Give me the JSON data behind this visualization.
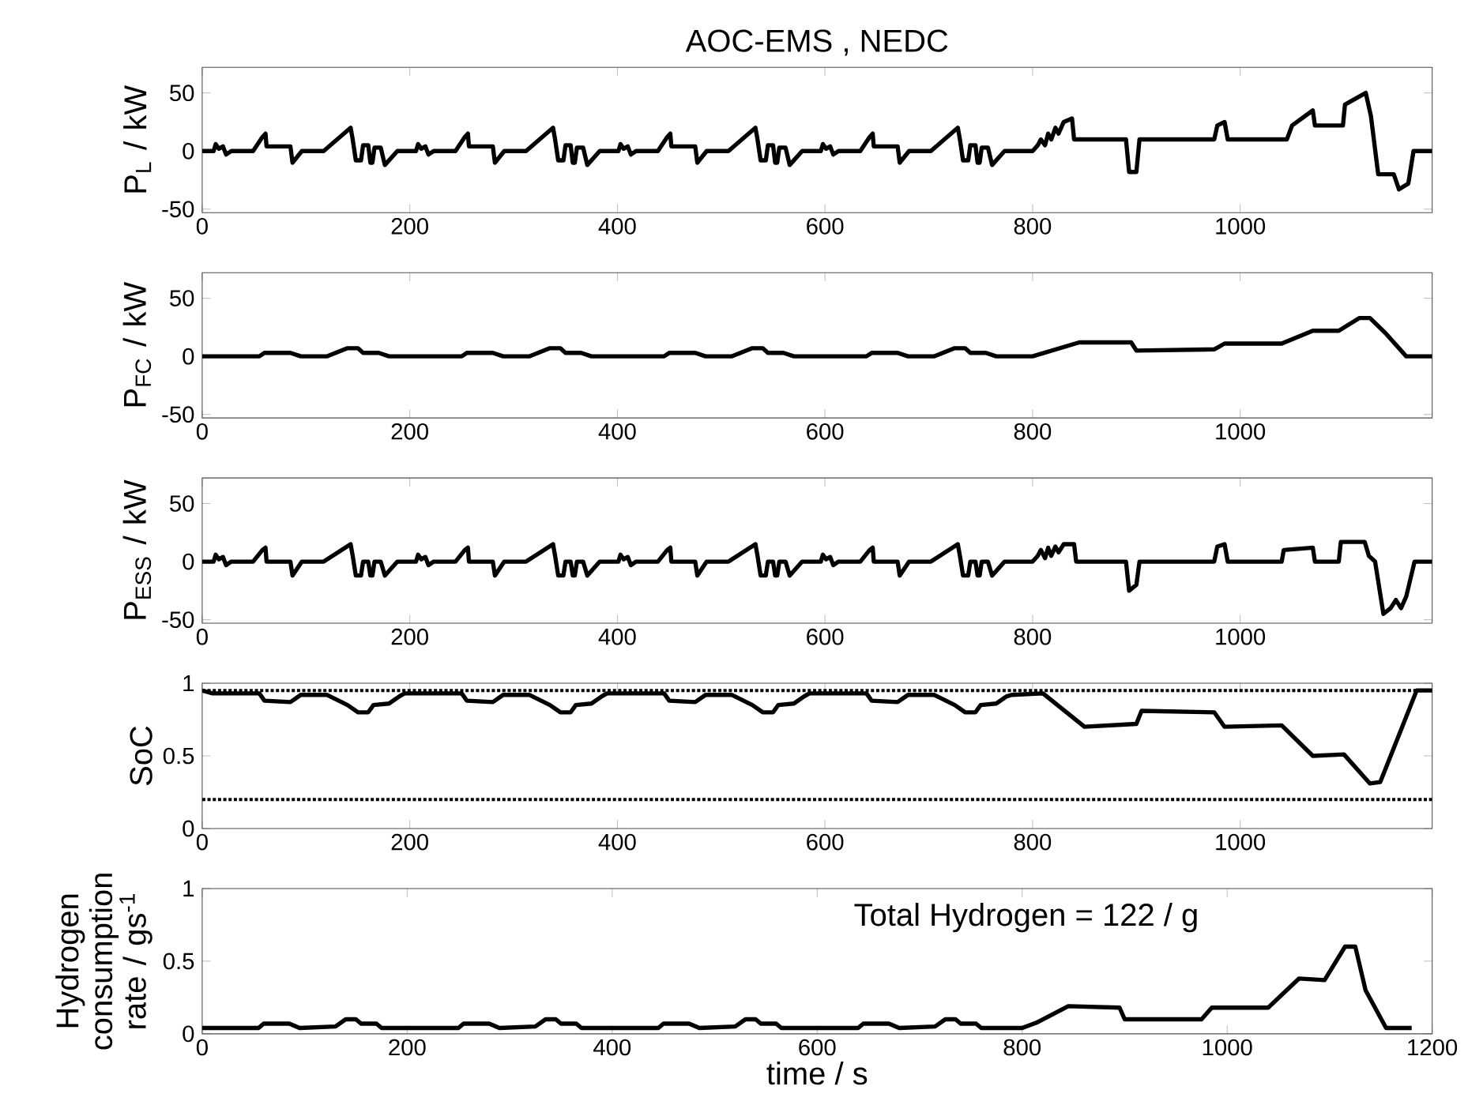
{
  "chart_data": [
    {
      "type": "line",
      "title": "AOC-EMS , NEDC",
      "ylabel": "P$_{L}$ / kW",
      "xlim": [
        0,
        1185
      ],
      "xticks": [
        0,
        200,
        400,
        600,
        800,
        1000
      ],
      "ylim": [
        -53,
        72
      ],
      "yticks": [
        -50,
        0,
        50
      ],
      "line_style": "solid",
      "series": [
        {
          "color": "#000000",
          "x": [
            0,
            11,
            13,
            16,
            20,
            23,
            28,
            49,
            58,
            61,
            62,
            85,
            87,
            96,
            117,
            143,
            145,
            148,
            153,
            155,
            160,
            162,
            164,
            166,
            172,
            176,
            188,
            195,
            206,
            208,
            211,
            215,
            218,
            223,
            244,
            253,
            256,
            257,
            280,
            282,
            291,
            312,
            338,
            340,
            343,
            348,
            350,
            355,
            357,
            359,
            361,
            367,
            371,
            383,
            390,
            401,
            403,
            406,
            410,
            413,
            418,
            439,
            448,
            451,
            452,
            475,
            477,
            486,
            507,
            533,
            535,
            538,
            543,
            545,
            550,
            552,
            554,
            556,
            562,
            566,
            578,
            585,
            596,
            598,
            601,
            605,
            608,
            613,
            634,
            643,
            646,
            647,
            670,
            672,
            681,
            702,
            728,
            730,
            733,
            738,
            740,
            745,
            747,
            749,
            751,
            757,
            761,
            773,
            780,
            800,
            805,
            808,
            812,
            815,
            818,
            822,
            825,
            830,
            838,
            840,
            890,
            893,
            900,
            903,
            975,
            978,
            985,
            988,
            1045,
            1050,
            1070,
            1072,
            1099,
            1101,
            1121,
            1126,
            1133,
            1148,
            1153,
            1162,
            1167,
            1185
          ],
          "values": [
            0,
            0,
            6,
            2,
            4,
            -3,
            0,
            0,
            12,
            15,
            4,
            4,
            -10,
            0,
            0,
            20,
            10,
            -8,
            -8,
            5,
            5,
            -10,
            -10,
            3,
            3,
            -12,
            0,
            0,
            0,
            6,
            2,
            4,
            -3,
            0,
            0,
            12,
            15,
            4,
            4,
            -10,
            0,
            0,
            20,
            10,
            -8,
            -8,
            5,
            5,
            -10,
            -10,
            3,
            3,
            -12,
            0,
            0,
            0,
            6,
            2,
            4,
            -3,
            0,
            0,
            12,
            15,
            4,
            4,
            -10,
            0,
            0,
            20,
            10,
            -8,
            -8,
            5,
            5,
            -10,
            -10,
            3,
            3,
            -12,
            0,
            0,
            0,
            6,
            2,
            4,
            -3,
            0,
            0,
            12,
            15,
            4,
            4,
            -10,
            0,
            0,
            20,
            10,
            -8,
            -8,
            5,
            5,
            -10,
            -10,
            3,
            3,
            -12,
            0,
            0,
            0,
            5,
            10,
            5,
            15,
            10,
            20,
            15,
            25,
            28,
            10,
            10,
            -18,
            -18,
            10,
            10,
            22,
            25,
            10,
            10,
            22,
            35,
            22,
            22,
            40,
            50,
            30,
            -20,
            -20,
            -33,
            -28,
            0,
            0
          ]
        }
      ]
    },
    {
      "type": "line",
      "ylabel": "P$_{FC}$ / kW",
      "xlim": [
        0,
        1185
      ],
      "xticks": [
        0,
        200,
        400,
        600,
        800,
        1000
      ],
      "ylim": [
        -53,
        72
      ],
      "yticks": [
        -50,
        0,
        50
      ],
      "line_style": "solid",
      "series": [
        {
          "color": "#000000",
          "x": [
            0,
            55,
            60,
            85,
            95,
            120,
            140,
            150,
            155,
            170,
            180,
            195,
            250,
            255,
            280,
            290,
            315,
            335,
            345,
            350,
            365,
            375,
            390,
            445,
            450,
            475,
            485,
            510,
            530,
            540,
            545,
            560,
            570,
            585,
            640,
            645,
            670,
            680,
            705,
            725,
            735,
            740,
            755,
            765,
            780,
            800,
            845,
            895,
            900,
            975,
            985,
            1040,
            1070,
            1095,
            1115,
            1125,
            1140,
            1160,
            1185
          ],
          "values": [
            0,
            0,
            3,
            3,
            0,
            0,
            7,
            7,
            3,
            3,
            0,
            0,
            0,
            3,
            3,
            0,
            0,
            7,
            7,
            3,
            3,
            0,
            0,
            0,
            3,
            3,
            0,
            0,
            7,
            7,
            3,
            3,
            0,
            0,
            0,
            3,
            3,
            0,
            0,
            7,
            7,
            3,
            3,
            0,
            0,
            0,
            12,
            12,
            5,
            6,
            11,
            11,
            22,
            22,
            33,
            33,
            20,
            0,
            0
          ]
        }
      ]
    },
    {
      "type": "line",
      "ylabel": "P$_{ESS}$ / kW",
      "xlim": [
        0,
        1185
      ],
      "xticks": [
        0,
        200,
        400,
        600,
        800,
        1000
      ],
      "ylim": [
        -53,
        72
      ],
      "yticks": [
        -50,
        0,
        50
      ],
      "line_style": "solid",
      "series": [
        {
          "color": "#000000",
          "x": [
            0,
            11,
            13,
            16,
            20,
            23,
            28,
            49,
            58,
            61,
            62,
            85,
            87,
            96,
            117,
            143,
            145,
            148,
            153,
            155,
            160,
            162,
            164,
            166,
            172,
            176,
            188,
            195,
            206,
            208,
            211,
            215,
            218,
            223,
            244,
            253,
            256,
            257,
            280,
            282,
            291,
            312,
            338,
            340,
            343,
            348,
            350,
            355,
            357,
            359,
            361,
            367,
            371,
            383,
            390,
            401,
            403,
            406,
            410,
            413,
            418,
            439,
            448,
            451,
            452,
            475,
            477,
            486,
            507,
            533,
            535,
            538,
            543,
            545,
            550,
            552,
            554,
            556,
            562,
            566,
            578,
            585,
            596,
            598,
            601,
            605,
            608,
            613,
            634,
            643,
            646,
            647,
            670,
            672,
            681,
            702,
            728,
            730,
            733,
            738,
            740,
            745,
            747,
            749,
            751,
            757,
            761,
            773,
            780,
            800,
            805,
            808,
            812,
            815,
            818,
            822,
            825,
            830,
            840,
            842,
            890,
            893,
            900,
            903,
            975,
            978,
            985,
            988,
            1040,
            1042,
            1070,
            1072,
            1095,
            1097,
            1120,
            1124,
            1130,
            1138,
            1145,
            1150,
            1155,
            1160,
            1168,
            1185
          ],
          "values": [
            0,
            0,
            6,
            2,
            4,
            -3,
            0,
            0,
            10,
            12,
            0,
            0,
            -12,
            0,
            0,
            15,
            5,
            -12,
            -12,
            0,
            0,
            -12,
            -12,
            0,
            0,
            -12,
            0,
            0,
            0,
            6,
            2,
            4,
            -3,
            0,
            0,
            10,
            12,
            0,
            0,
            -12,
            0,
            0,
            15,
            5,
            -12,
            -12,
            0,
            0,
            -12,
            -12,
            0,
            0,
            -12,
            0,
            0,
            0,
            6,
            2,
            4,
            -3,
            0,
            0,
            10,
            12,
            0,
            0,
            -12,
            0,
            0,
            15,
            5,
            -12,
            -12,
            0,
            0,
            -12,
            -12,
            0,
            0,
            -12,
            0,
            0,
            0,
            6,
            2,
            4,
            -3,
            0,
            0,
            10,
            12,
            0,
            0,
            -12,
            0,
            0,
            15,
            5,
            -12,
            -12,
            0,
            0,
            -12,
            -12,
            0,
            0,
            -12,
            0,
            0,
            0,
            5,
            10,
            3,
            12,
            5,
            13,
            8,
            15,
            15,
            0,
            0,
            -25,
            -20,
            0,
            0,
            13,
            15,
            0,
            0,
            10,
            12,
            0,
            0,
            17,
            17,
            5,
            0,
            -45,
            -40,
            -33,
            -40,
            -30,
            0,
            0
          ]
        }
      ]
    },
    {
      "type": "line",
      "ylabel": "SoC",
      "xlim": [
        0,
        1185
      ],
      "xticks": [
        0,
        200,
        400,
        600,
        800,
        1000
      ],
      "ylim": [
        0,
        1
      ],
      "yticks": [
        0,
        0.5,
        1
      ],
      "line_style": "solid",
      "ref_lines": [
        {
          "axis": "y",
          "value": 0.95,
          "color": "#000000",
          "line_style": "dotted"
        },
        {
          "axis": "y",
          "value": 0.2,
          "color": "#000000",
          "line_style": "dotted"
        }
      ],
      "series": [
        {
          "color": "#000000",
          "x": [
            0,
            10,
            55,
            60,
            85,
            95,
            120,
            140,
            150,
            160,
            165,
            180,
            190,
            195,
            205,
            250,
            255,
            280,
            290,
            315,
            335,
            345,
            355,
            360,
            375,
            385,
            390,
            400,
            445,
            450,
            475,
            485,
            510,
            530,
            540,
            550,
            555,
            570,
            580,
            585,
            595,
            640,
            645,
            670,
            680,
            705,
            725,
            735,
            745,
            750,
            765,
            775,
            780,
            810,
            850,
            900,
            905,
            975,
            985,
            1040,
            1070,
            1100,
            1125,
            1135,
            1170,
            1185
          ],
          "values": [
            0.95,
            0.93,
            0.93,
            0.88,
            0.87,
            0.92,
            0.92,
            0.85,
            0.8,
            0.8,
            0.85,
            0.86,
            0.91,
            0.93,
            0.93,
            0.93,
            0.88,
            0.87,
            0.92,
            0.92,
            0.85,
            0.8,
            0.8,
            0.85,
            0.86,
            0.91,
            0.93,
            0.93,
            0.93,
            0.88,
            0.87,
            0.92,
            0.92,
            0.85,
            0.8,
            0.8,
            0.85,
            0.86,
            0.91,
            0.93,
            0.93,
            0.93,
            0.88,
            0.87,
            0.92,
            0.92,
            0.85,
            0.8,
            0.8,
            0.85,
            0.86,
            0.91,
            0.92,
            0.93,
            0.7,
            0.72,
            0.81,
            0.8,
            0.7,
            0.71,
            0.5,
            0.51,
            0.31,
            0.32,
            0.95,
            0.95
          ]
        }
      ]
    },
    {
      "type": "line",
      "ylabel": "Hydrogen consumption rate  / gs$^{-1}$",
      "xlabel": "time / s",
      "xlim": [
        0,
        1200
      ],
      "xticks": [
        0,
        200,
        400,
        600,
        800,
        1000,
        1200
      ],
      "ylim": [
        0,
        1
      ],
      "yticks": [
        0,
        0.5,
        1
      ],
      "line_style": "solid",
      "annotations": [
        "Total Hydrogen  = 122 / g"
      ],
      "series": [
        {
          "color": "#000000",
          "x": [
            0,
            55,
            60,
            85,
            95,
            130,
            140,
            150,
            155,
            170,
            175,
            195,
            250,
            255,
            280,
            290,
            325,
            335,
            345,
            350,
            365,
            370,
            390,
            445,
            450,
            475,
            485,
            520,
            530,
            540,
            545,
            560,
            565,
            585,
            640,
            645,
            670,
            680,
            715,
            725,
            735,
            740,
            755,
            760,
            780,
            800,
            815,
            845,
            895,
            900,
            975,
            985,
            1040,
            1070,
            1095,
            1115,
            1125,
            1135,
            1155,
            1180
          ],
          "values": [
            0.04,
            0.04,
            0.07,
            0.07,
            0.04,
            0.05,
            0.1,
            0.1,
            0.07,
            0.07,
            0.04,
            0.04,
            0.04,
            0.07,
            0.07,
            0.04,
            0.05,
            0.1,
            0.1,
            0.07,
            0.07,
            0.04,
            0.04,
            0.04,
            0.07,
            0.07,
            0.04,
            0.05,
            0.1,
            0.1,
            0.07,
            0.07,
            0.04,
            0.04,
            0.04,
            0.07,
            0.07,
            0.04,
            0.05,
            0.1,
            0.1,
            0.07,
            0.07,
            0.04,
            0.04,
            0.04,
            0.08,
            0.19,
            0.18,
            0.1,
            0.1,
            0.18,
            0.18,
            0.38,
            0.37,
            0.6,
            0.6,
            0.3,
            0.04,
            0.04
          ]
        }
      ]
    }
  ]
}
